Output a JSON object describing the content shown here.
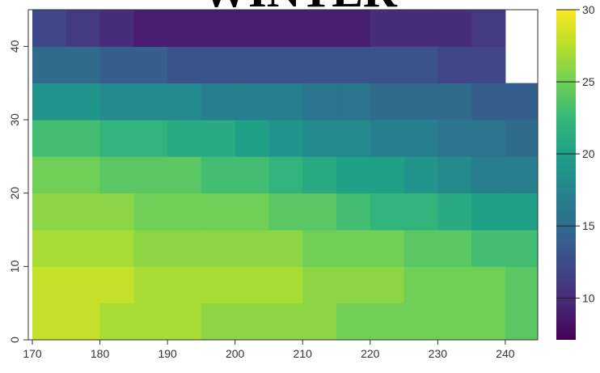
{
  "chart_data": {
    "type": "heatmap",
    "title": "WINTER",
    "x_edges": [
      170,
      175,
      180,
      185,
      190,
      195,
      200,
      205,
      210,
      215,
      220,
      225,
      230,
      235,
      240,
      245
    ],
    "y_edges": [
      0,
      5,
      10,
      15,
      20,
      25,
      30,
      35,
      40,
      45
    ],
    "values": [
      [
        28,
        28,
        27,
        27,
        27,
        26,
        26,
        26,
        26,
        25,
        25,
        25,
        25,
        25,
        24
      ],
      [
        28,
        28,
        28,
        27,
        27,
        27,
        27,
        27,
        26,
        26,
        26,
        25,
        25,
        25,
        24
      ],
      [
        27,
        27,
        27,
        26,
        26,
        26,
        26,
        26,
        25,
        25,
        25,
        24,
        24,
        23,
        23
      ],
      [
        26,
        26,
        26,
        25,
        25,
        25,
        25,
        24,
        24,
        23,
        22,
        22,
        21,
        20,
        20
      ],
      [
        25,
        25,
        24,
        24,
        24,
        23,
        23,
        22,
        21,
        20,
        20,
        19,
        18,
        17,
        17
      ],
      [
        23,
        23,
        22,
        22,
        21,
        21,
        20,
        19,
        18,
        18,
        17,
        17,
        16,
        16,
        15
      ],
      [
        19,
        19,
        18,
        18,
        18,
        17,
        17,
        17,
        16,
        16,
        15,
        15,
        15,
        14,
        14
      ],
      [
        15,
        15,
        14,
        14,
        13,
        13,
        13,
        13,
        13,
        13,
        13,
        13,
        12,
        12,
        null
      ],
      [
        12,
        11,
        10,
        9,
        9,
        9,
        9,
        9,
        9,
        9,
        10,
        10,
        10,
        11,
        null
      ]
    ],
    "xlim": [
      169.4,
      244.8
    ],
    "ylim": [
      0,
      45
    ],
    "xticks": [
      170,
      180,
      190,
      200,
      210,
      220,
      230,
      240
    ],
    "yticks": [
      0,
      10,
      20,
      30,
      40
    ],
    "clim": [
      7.1,
      30
    ],
    "cticks": [
      10,
      15,
      20,
      25,
      30
    ],
    "colorscale": [
      "#440154",
      "#482878",
      "#3e4989",
      "#31688e",
      "#26828e",
      "#1f9e89",
      "#35b779",
      "#6ece58",
      "#b5de2b",
      "#fde725"
    ]
  }
}
